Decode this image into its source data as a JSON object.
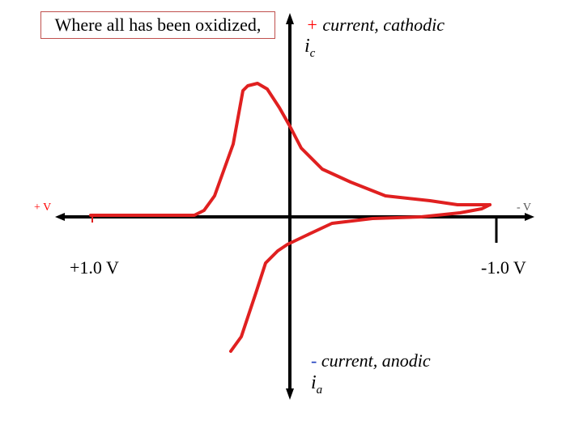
{
  "box_note": "Where all has been oxidized,",
  "cathodic_label": {
    "sign": "+",
    "text": " current, cathodic"
  },
  "anodic_label": {
    "sign": "-",
    "text": " current, anodic"
  },
  "ic_label": {
    "base": "i",
    "sub": "c"
  },
  "ia_label": {
    "base": "i",
    "sub": "a"
  },
  "left_axis_label": "+ V",
  "right_axis_label": "- V",
  "left_voltage": "+1.0 V",
  "right_voltage": "-1.0 V",
  "colors": {
    "curve": "#e02020",
    "axis": "#000000",
    "box_border": "#c0504d"
  }
}
